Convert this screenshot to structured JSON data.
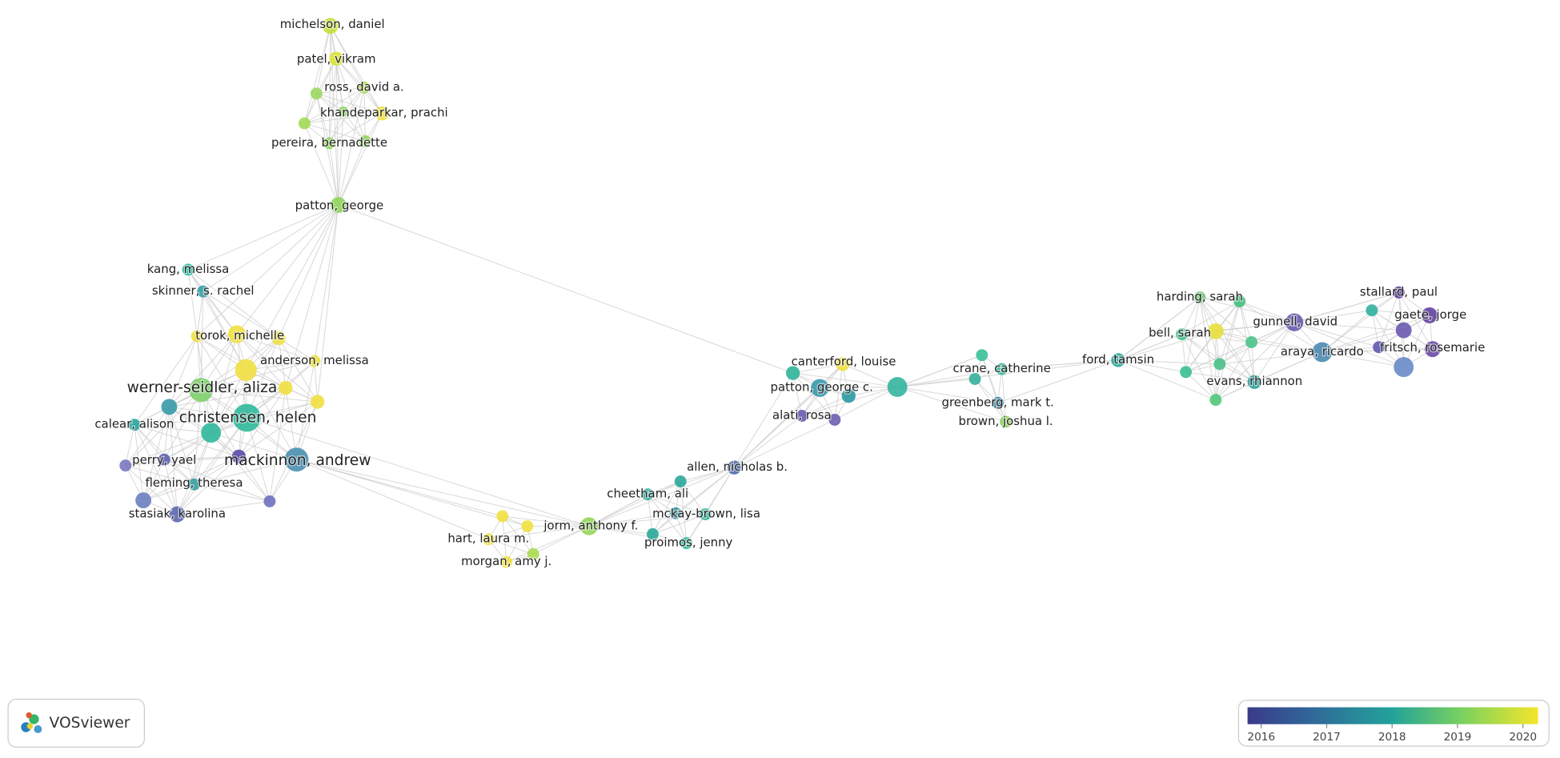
{
  "nodes": [
    {
      "label": "michelson, daniel",
      "color": "#c8e03a"
    },
    {
      "label": "patel, vikram",
      "color": "#d6e332"
    },
    {
      "label": "ross, david a.",
      "color": "#a8dc4a"
    },
    {
      "label": "khandeparkar, prachi",
      "color": "#f0e13a"
    },
    {
      "label": "pereira, bernadette",
      "color": "#8fd55a"
    },
    {
      "label": "patton, george",
      "color": "#8fd55a"
    },
    {
      "label": "kang, melissa",
      "color": "#2ab7a0"
    },
    {
      "label": "skinner, s. rachel",
      "color": "#3a9ea8"
    },
    {
      "label": "torok, michelle",
      "color": "#f1e040"
    },
    {
      "label": "anderson, melissa",
      "color": "#ecdf3a"
    },
    {
      "label": "werner-seidler, aliza",
      "color": "#7dcf6a"
    },
    {
      "label": "calear, alison",
      "color": "#2aa5a0"
    },
    {
      "label": "christensen, helen",
      "color": "#2db89a"
    },
    {
      "label": "perry, yael",
      "color": "#5e5faf"
    },
    {
      "label": "mackinnon, andrew",
      "color": "#4a8fb0"
    },
    {
      "label": "fleming, theresa",
      "color": "#3aa0a0"
    },
    {
      "label": "stasiak, karolina",
      "color": "#5b68b0"
    },
    {
      "label": "canterford, louise",
      "color": "#f0e040"
    },
    {
      "label": "patton, george c.",
      "color": "#3a98ac"
    },
    {
      "label": "alati, rosa",
      "color": "#6a5ab0"
    },
    {
      "label": "allen, nicholas b.",
      "color": "#4a6aa8"
    },
    {
      "label": "cheetham, ali",
      "color": "#2aa79a"
    },
    {
      "label": "mckay-brown, lisa",
      "color": "#2bb59a"
    },
    {
      "label": "proimos, jenny",
      "color": "#2fb8a0"
    },
    {
      "label": "jorm, anthony f.",
      "color": "#93d556"
    },
    {
      "label": "hart, laura m.",
      "color": "#f0e040"
    },
    {
      "label": "morgan, amy j.",
      "color": "#f0e040"
    },
    {
      "label": "crane, catherine",
      "color": "#34b89a"
    },
    {
      "label": "greenberg, mark t.",
      "color": "#3a8aa8"
    },
    {
      "label": "brown, joshua l.",
      "color": "#8cd25c"
    },
    {
      "label": "ford, tamsin",
      "color": "#26a89a"
    },
    {
      "label": "harding, sarah",
      "color": "#72c87a"
    },
    {
      "label": "bell, sarah",
      "color": "#3ec08a"
    },
    {
      "label": "gunnell, david",
      "color": "#6a5ab0"
    },
    {
      "label": "stallard, paul",
      "color": "#5a3a9a"
    },
    {
      "label": "gaete, jorge",
      "color": "#6040a0"
    },
    {
      "label": "araya, ricardo",
      "color": "#4a8ab0"
    },
    {
      "label": "fritsch, rosemarie",
      "color": "#6a4aa8"
    },
    {
      "label": "evans, rhiannon",
      "color": "#2aa09a"
    }
  ],
  "legend": {
    "ticks": [
      2016,
      2017,
      2018,
      2019,
      2020
    ],
    "range": [
      2015.79,
      2020.23
    ]
  },
  "logo": "VOSviewer"
}
